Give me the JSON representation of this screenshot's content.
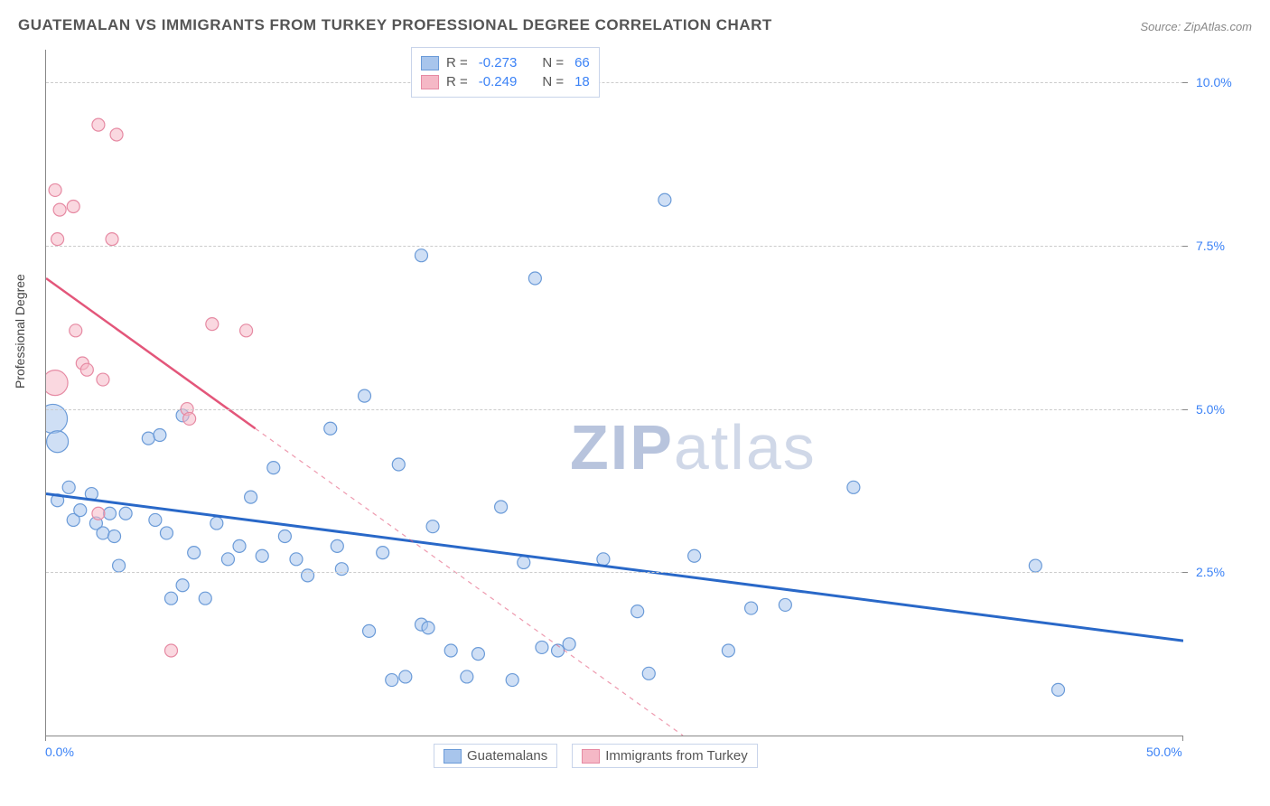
{
  "title": "GUATEMALAN VS IMMIGRANTS FROM TURKEY PROFESSIONAL DEGREE CORRELATION CHART",
  "source": "Source: ZipAtlas.com",
  "watermark_a": "ZIP",
  "watermark_b": "atlas",
  "y_axis_label": "Professional Degree",
  "chart": {
    "type": "scatter",
    "xlim": [
      0,
      50
    ],
    "ylim": [
      0,
      10.5
    ],
    "x_ticks": [
      {
        "v": 0,
        "label": "0.0%"
      },
      {
        "v": 50,
        "label": "50.0%"
      }
    ],
    "y_ticks": [
      {
        "v": 2.5,
        "label": "2.5%"
      },
      {
        "v": 5.0,
        "label": "5.0%"
      },
      {
        "v": 7.5,
        "label": "7.5%"
      },
      {
        "v": 10.0,
        "label": "10.0%"
      }
    ],
    "grid_color": "#cccccc",
    "background_color": "#ffffff",
    "series": [
      {
        "name": "Guatemalans",
        "color_fill": "#a8c5ec",
        "color_stroke": "#6b9bd8",
        "fill_opacity": 0.55,
        "legend": {
          "R_label": "R =",
          "R": "-0.273",
          "N_label": "N =",
          "N": "66"
        },
        "trend": {
          "color": "#2968c8",
          "width": 3,
          "x1": 0,
          "y1": 3.7,
          "x2": 50,
          "y2": 1.45,
          "dash_from_x": null
        },
        "points": [
          {
            "x": 0.3,
            "y": 4.85,
            "r": 16
          },
          {
            "x": 0.5,
            "y": 4.5,
            "r": 12
          },
          {
            "x": 0.5,
            "y": 3.6,
            "r": 7
          },
          {
            "x": 1.0,
            "y": 3.8,
            "r": 7
          },
          {
            "x": 1.2,
            "y": 3.3,
            "r": 7
          },
          {
            "x": 1.5,
            "y": 3.45,
            "r": 7
          },
          {
            "x": 2.0,
            "y": 3.7,
            "r": 7
          },
          {
            "x": 2.2,
            "y": 3.25,
            "r": 7
          },
          {
            "x": 2.5,
            "y": 3.1,
            "r": 7
          },
          {
            "x": 2.8,
            "y": 3.4,
            "r": 7
          },
          {
            "x": 3.0,
            "y": 3.05,
            "r": 7
          },
          {
            "x": 3.2,
            "y": 2.6,
            "r": 7
          },
          {
            "x": 3.5,
            "y": 3.4,
            "r": 7
          },
          {
            "x": 4.5,
            "y": 4.55,
            "r": 7
          },
          {
            "x": 4.8,
            "y": 3.3,
            "r": 7
          },
          {
            "x": 5.0,
            "y": 4.6,
            "r": 7
          },
          {
            "x": 5.3,
            "y": 3.1,
            "r": 7
          },
          {
            "x": 5.5,
            "y": 2.1,
            "r": 7
          },
          {
            "x": 6.0,
            "y": 2.3,
            "r": 7
          },
          {
            "x": 6.0,
            "y": 4.9,
            "r": 7
          },
          {
            "x": 6.5,
            "y": 2.8,
            "r": 7
          },
          {
            "x": 7.0,
            "y": 2.1,
            "r": 7
          },
          {
            "x": 7.5,
            "y": 3.25,
            "r": 7
          },
          {
            "x": 8.0,
            "y": 2.7,
            "r": 7
          },
          {
            "x": 8.5,
            "y": 2.9,
            "r": 7
          },
          {
            "x": 9.0,
            "y": 3.65,
            "r": 7
          },
          {
            "x": 9.5,
            "y": 2.75,
            "r": 7
          },
          {
            "x": 10.0,
            "y": 4.1,
            "r": 7
          },
          {
            "x": 10.5,
            "y": 3.05,
            "r": 7
          },
          {
            "x": 11.0,
            "y": 2.7,
            "r": 7
          },
          {
            "x": 11.5,
            "y": 2.45,
            "r": 7
          },
          {
            "x": 12.5,
            "y": 4.7,
            "r": 7
          },
          {
            "x": 12.8,
            "y": 2.9,
            "r": 7
          },
          {
            "x": 13.0,
            "y": 2.55,
            "r": 7
          },
          {
            "x": 14.0,
            "y": 5.2,
            "r": 7
          },
          {
            "x": 14.2,
            "y": 1.6,
            "r": 7
          },
          {
            "x": 14.8,
            "y": 2.8,
            "r": 7
          },
          {
            "x": 15.2,
            "y": 0.85,
            "r": 7
          },
          {
            "x": 15.5,
            "y": 4.15,
            "r": 7
          },
          {
            "x": 15.8,
            "y": 0.9,
            "r": 7
          },
          {
            "x": 16.5,
            "y": 1.7,
            "r": 7
          },
          {
            "x": 16.5,
            "y": 7.35,
            "r": 7
          },
          {
            "x": 16.8,
            "y": 1.65,
            "r": 7
          },
          {
            "x": 17.0,
            "y": 3.2,
            "r": 7
          },
          {
            "x": 17.8,
            "y": 1.3,
            "r": 7
          },
          {
            "x": 18.5,
            "y": 0.9,
            "r": 7
          },
          {
            "x": 19.0,
            "y": 1.25,
            "r": 7
          },
          {
            "x": 20.0,
            "y": 3.5,
            "r": 7
          },
          {
            "x": 20.5,
            "y": 0.85,
            "r": 7
          },
          {
            "x": 21.0,
            "y": 2.65,
            "r": 7
          },
          {
            "x": 21.5,
            "y": 7.0,
            "r": 7
          },
          {
            "x": 21.8,
            "y": 1.35,
            "r": 7
          },
          {
            "x": 22.5,
            "y": 1.3,
            "r": 7
          },
          {
            "x": 23.0,
            "y": 1.4,
            "r": 7
          },
          {
            "x": 24.5,
            "y": 2.7,
            "r": 7
          },
          {
            "x": 26.0,
            "y": 1.9,
            "r": 7
          },
          {
            "x": 26.5,
            "y": 0.95,
            "r": 7
          },
          {
            "x": 27.2,
            "y": 8.2,
            "r": 7
          },
          {
            "x": 28.5,
            "y": 2.75,
            "r": 7
          },
          {
            "x": 30.0,
            "y": 1.3,
            "r": 7
          },
          {
            "x": 31.0,
            "y": 1.95,
            "r": 7
          },
          {
            "x": 32.5,
            "y": 2.0,
            "r": 7
          },
          {
            "x": 35.5,
            "y": 3.8,
            "r": 7
          },
          {
            "x": 43.5,
            "y": 2.6,
            "r": 7
          },
          {
            "x": 44.5,
            "y": 0.7,
            "r": 7
          }
        ]
      },
      {
        "name": "Immigrants from Turkey",
        "color_fill": "#f5b8c6",
        "color_stroke": "#e68aa3",
        "fill_opacity": 0.55,
        "legend": {
          "R_label": "R =",
          "R": "-0.249",
          "N_label": "N =",
          "N": "18"
        },
        "trend": {
          "color": "#e3567a",
          "width": 2.5,
          "x1": 0,
          "y1": 7.0,
          "x2": 28,
          "y2": 0,
          "dash_from_x": 9.2
        },
        "points": [
          {
            "x": 0.4,
            "y": 8.35,
            "r": 7
          },
          {
            "x": 0.6,
            "y": 8.05,
            "r": 7
          },
          {
            "x": 0.5,
            "y": 7.6,
            "r": 7
          },
          {
            "x": 0.4,
            "y": 5.4,
            "r": 14
          },
          {
            "x": 1.2,
            "y": 8.1,
            "r": 7
          },
          {
            "x": 1.3,
            "y": 6.2,
            "r": 7
          },
          {
            "x": 1.6,
            "y": 5.7,
            "r": 7
          },
          {
            "x": 1.8,
            "y": 5.6,
            "r": 7
          },
          {
            "x": 2.3,
            "y": 9.35,
            "r": 7
          },
          {
            "x": 2.3,
            "y": 3.4,
            "r": 7
          },
          {
            "x": 2.5,
            "y": 5.45,
            "r": 7
          },
          {
            "x": 2.9,
            "y": 7.6,
            "r": 7
          },
          {
            "x": 3.1,
            "y": 9.2,
            "r": 7
          },
          {
            "x": 5.5,
            "y": 1.3,
            "r": 7
          },
          {
            "x": 6.2,
            "y": 5.0,
            "r": 7
          },
          {
            "x": 6.3,
            "y": 4.85,
            "r": 7
          },
          {
            "x": 7.3,
            "y": 6.3,
            "r": 7
          },
          {
            "x": 8.8,
            "y": 6.2,
            "r": 7
          }
        ]
      }
    ]
  }
}
